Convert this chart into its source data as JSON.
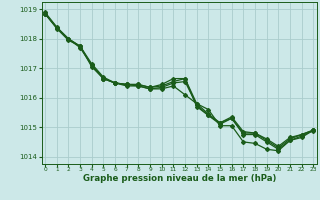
{
  "title": "Graphe pression niveau de la mer (hPa)",
  "bg_color": "#cce8e8",
  "grid_color": "#aacccc",
  "line_color": "#1a5c1a",
  "series": [
    [
      1018.9,
      1018.4,
      1018.0,
      1017.7,
      1017.1,
      1016.65,
      1016.5,
      1016.45,
      1016.4,
      1016.3,
      1016.3,
      1016.4,
      1016.1,
      1015.8,
      1015.6,
      1015.05,
      1015.05,
      1014.5,
      1014.45,
      1014.25,
      1014.2,
      1014.55,
      1014.65,
      1014.9
    ],
    [
      1018.85,
      1018.35,
      1017.95,
      1017.75,
      1017.1,
      1016.65,
      1016.5,
      1016.45,
      1016.45,
      1016.35,
      1016.4,
      1016.55,
      1016.65,
      1015.7,
      1015.4,
      1015.15,
      1015.3,
      1014.8,
      1014.8,
      1014.55,
      1014.3,
      1014.6,
      1014.75,
      1014.9
    ],
    [
      1018.85,
      1018.38,
      1018.0,
      1017.75,
      1017.15,
      1016.7,
      1016.5,
      1016.45,
      1016.45,
      1016.35,
      1016.45,
      1016.65,
      1016.65,
      1015.8,
      1015.45,
      1015.15,
      1015.35,
      1014.85,
      1014.8,
      1014.6,
      1014.35,
      1014.65,
      1014.75,
      1014.9
    ],
    [
      1018.85,
      1018.38,
      1018.0,
      1017.75,
      1017.05,
      1016.65,
      1016.5,
      1016.4,
      1016.4,
      1016.3,
      1016.35,
      1016.5,
      1016.55,
      1015.75,
      1015.4,
      1015.1,
      1015.3,
      1014.75,
      1014.75,
      1014.5,
      1014.25,
      1014.55,
      1014.7,
      1014.88
    ]
  ],
  "xlim": [
    -0.3,
    23.3
  ],
  "ylim": [
    1013.75,
    1019.25
  ],
  "yticks": [
    1014,
    1015,
    1016,
    1017,
    1018,
    1019
  ],
  "xticks": [
    0,
    1,
    2,
    3,
    4,
    5,
    6,
    7,
    8,
    9,
    10,
    11,
    12,
    13,
    14,
    15,
    16,
    17,
    18,
    19,
    20,
    21,
    22,
    23
  ],
  "marker": "D",
  "marker_size": 2.0,
  "linewidth": 0.9
}
